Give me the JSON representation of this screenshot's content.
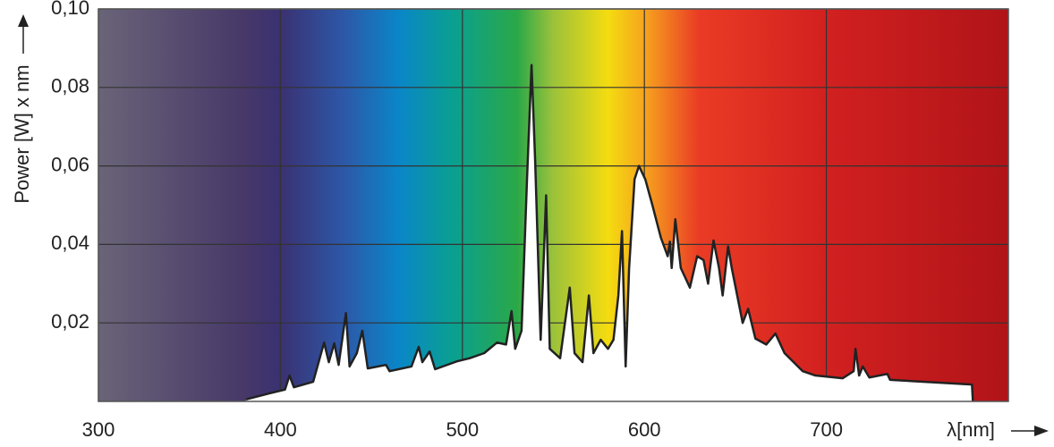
{
  "chart_data": {
    "type": "area",
    "x_label": "λ[nm]",
    "y_label": "Power [W] x nm",
    "x": [
      381,
      393.6,
      402.5,
      405,
      407.4,
      418,
      424,
      426.6,
      429.6,
      432,
      436,
      438,
      442,
      445,
      448,
      458,
      460,
      472,
      476,
      478,
      482,
      485,
      497,
      504,
      512,
      519,
      524,
      527,
      529,
      532.5,
      535.5,
      538,
      540,
      543,
      546,
      548,
      553.7,
      559,
      561.6,
      566,
      569.5,
      572,
      576,
      580,
      583,
      585.7,
      587.7,
      589.7,
      591.6,
      594.6,
      597,
      600.5,
      604.4,
      609,
      612.8,
      614,
      615,
      617,
      620,
      625,
      629,
      632.5,
      635,
      638,
      641,
      643,
      646,
      648,
      651,
      654,
      657,
      661,
      667,
      672,
      677,
      687,
      694,
      709,
      715,
      716,
      718,
      720,
      723.6,
      733.5,
      735,
      780,
      780.5
    ],
    "values": [
      0.0005,
      0.002,
      0.003,
      0.0066,
      0.0036,
      0.005,
      0.015,
      0.01,
      0.0148,
      0.0093,
      0.0225,
      0.0089,
      0.0123,
      0.018,
      0.0084,
      0.0093,
      0.0077,
      0.0089,
      0.0139,
      0.01,
      0.0127,
      0.0082,
      0.0102,
      0.011,
      0.0123,
      0.015,
      0.0145,
      0.023,
      0.0134,
      0.018,
      0.0566,
      0.0857,
      0.061,
      0.0157,
      0.0525,
      0.0134,
      0.011,
      0.029,
      0.0123,
      0.01,
      0.027,
      0.0123,
      0.0157,
      0.0134,
      0.0157,
      0.027,
      0.0434,
      0.0089,
      0.0339,
      0.0566,
      0.06,
      0.0566,
      0.05,
      0.0418,
      0.037,
      0.0407,
      0.034,
      0.0464,
      0.034,
      0.029,
      0.037,
      0.036,
      0.03,
      0.041,
      0.034,
      0.027,
      0.0395,
      0.034,
      0.027,
      0.02,
      0.0236,
      0.016,
      0.0145,
      0.0173,
      0.0123,
      0.0077,
      0.0066,
      0.0059,
      0.0077,
      0.0134,
      0.0066,
      0.0089,
      0.0061,
      0.007,
      0.0055,
      0.0043,
      0
    ],
    "color": "#ffffff",
    "line_color": "#222222",
    "xlim": [
      300,
      800
    ],
    "ylim": [
      0,
      0.1
    ],
    "xticks": [
      300,
      400,
      500,
      600,
      700
    ],
    "yticks": [
      {
        "value": 0.02,
        "label": "0,02"
      },
      {
        "value": 0.04,
        "label": "0,04"
      },
      {
        "value": 0.06,
        "label": "0,06"
      },
      {
        "value": 0.08,
        "label": "0,08"
      },
      {
        "value": 0.1,
        "label": "0,10"
      }
    ],
    "grid": true
  }
}
